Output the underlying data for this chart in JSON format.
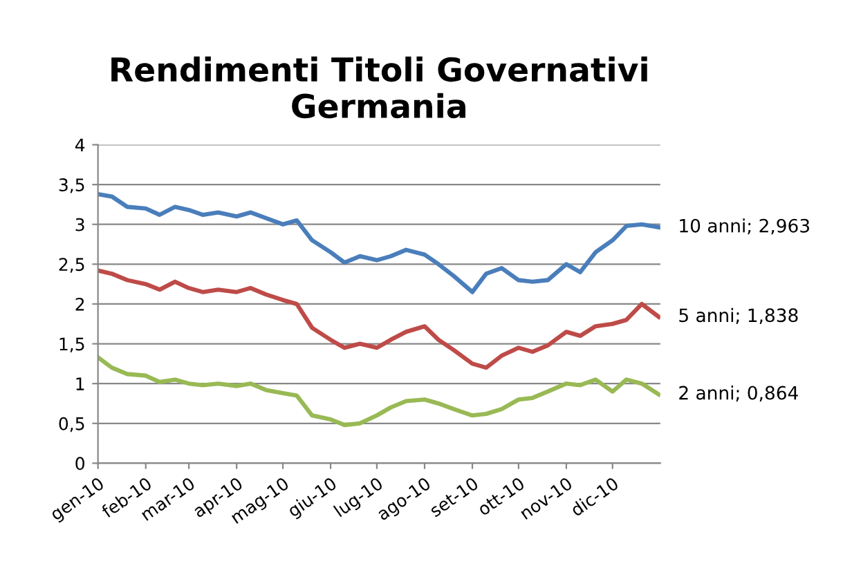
{
  "chart_data": {
    "type": "line",
    "title": "Rendimenti Titoli Governativi\nGermania",
    "x": [
      "2010-01-01",
      "2010-01-10",
      "2010-01-20",
      "2010-02-01",
      "2010-02-10",
      "2010-02-20",
      "2010-03-01",
      "2010-03-10",
      "2010-03-20",
      "2010-04-01",
      "2010-04-10",
      "2010-04-20",
      "2010-05-01",
      "2010-05-10",
      "2010-05-20",
      "2010-06-01",
      "2010-06-10",
      "2010-06-20",
      "2010-07-01",
      "2010-07-10",
      "2010-07-20",
      "2010-08-01",
      "2010-08-10",
      "2010-08-20",
      "2010-09-01",
      "2010-09-10",
      "2010-09-20",
      "2010-10-01",
      "2010-10-10",
      "2010-10-20",
      "2010-11-01",
      "2010-11-10",
      "2010-11-20",
      "2010-12-01",
      "2010-12-10",
      "2010-12-20",
      "2010-12-31"
    ],
    "series": [
      {
        "color": "#4a7ebb",
        "values": [
          3.38,
          3.35,
          3.22,
          3.2,
          3.12,
          3.22,
          3.18,
          3.12,
          3.15,
          3.1,
          3.15,
          3.08,
          3.0,
          3.05,
          2.8,
          2.65,
          2.52,
          2.6,
          2.55,
          2.6,
          2.68,
          2.62,
          2.5,
          2.35,
          2.15,
          2.38,
          2.45,
          2.3,
          2.28,
          2.3,
          2.5,
          2.4,
          2.65,
          2.8,
          2.98,
          3.0,
          2.963
        ]
      },
      {
        "color": "#be4b48",
        "values": [
          2.42,
          2.38,
          2.3,
          2.25,
          2.18,
          2.28,
          2.2,
          2.15,
          2.18,
          2.15,
          2.2,
          2.12,
          2.05,
          2.0,
          1.7,
          1.55,
          1.45,
          1.5,
          1.45,
          1.55,
          1.65,
          1.72,
          1.55,
          1.42,
          1.25,
          1.2,
          1.35,
          1.45,
          1.4,
          1.48,
          1.65,
          1.6,
          1.72,
          1.75,
          1.8,
          2.0,
          1.838
        ]
      },
      {
        "color": "#98b954",
        "values": [
          1.33,
          1.2,
          1.12,
          1.1,
          1.02,
          1.05,
          1.0,
          0.98,
          1.0,
          0.97,
          1.0,
          0.92,
          0.88,
          0.85,
          0.6,
          0.55,
          0.48,
          0.5,
          0.6,
          0.7,
          0.78,
          0.8,
          0.75,
          0.68,
          0.6,
          0.62,
          0.68,
          0.8,
          0.82,
          0.9,
          1.0,
          0.98,
          1.05,
          0.9,
          1.05,
          1.0,
          0.864
        ]
      }
    ],
    "annotations": [
      {
        "text": "10 anni; 2,963",
        "x": "2010-12-31",
        "y": 2.963
      },
      {
        "text": "5 anni; 1,838",
        "x": "2010-12-31",
        "y": 1.838
      },
      {
        "text": "2 anni; 0,864",
        "x": "2010-12-31",
        "y": 0.864
      }
    ],
    "xlim": [
      "2010-01-01",
      "2011-01-01"
    ],
    "xticks": [
      {
        "value": "2010-01-01",
        "label": "gen-10"
      },
      {
        "value": "2010-02-01",
        "label": "feb-10"
      },
      {
        "value": "2010-03-01",
        "label": "mar-10"
      },
      {
        "value": "2010-04-01",
        "label": "apr-10"
      },
      {
        "value": "2010-05-01",
        "label": "mag-10"
      },
      {
        "value": "2010-06-01",
        "label": "giu-10"
      },
      {
        "value": "2010-07-01",
        "label": "lug-10"
      },
      {
        "value": "2010-08-01",
        "label": "ago-10"
      },
      {
        "value": "2010-09-01",
        "label": "set-10"
      },
      {
        "value": "2010-10-01",
        "label": "ott-10"
      },
      {
        "value": "2010-11-01",
        "label": "nov-10"
      },
      {
        "value": "2010-12-01",
        "label": "dic-10"
      }
    ],
    "ylim": [
      0,
      4
    ],
    "yticks": [
      0,
      {
        "value": 0.5,
        "label": "0,5"
      },
      1,
      {
        "value": 1.5,
        "label": "1,5"
      },
      2,
      {
        "value": 2.5,
        "label": "2,5"
      },
      3,
      {
        "value": 3.5,
        "label": "3,5"
      },
      4
    ],
    "grid": "y",
    "line_style": "solid",
    "marker": "none"
  }
}
